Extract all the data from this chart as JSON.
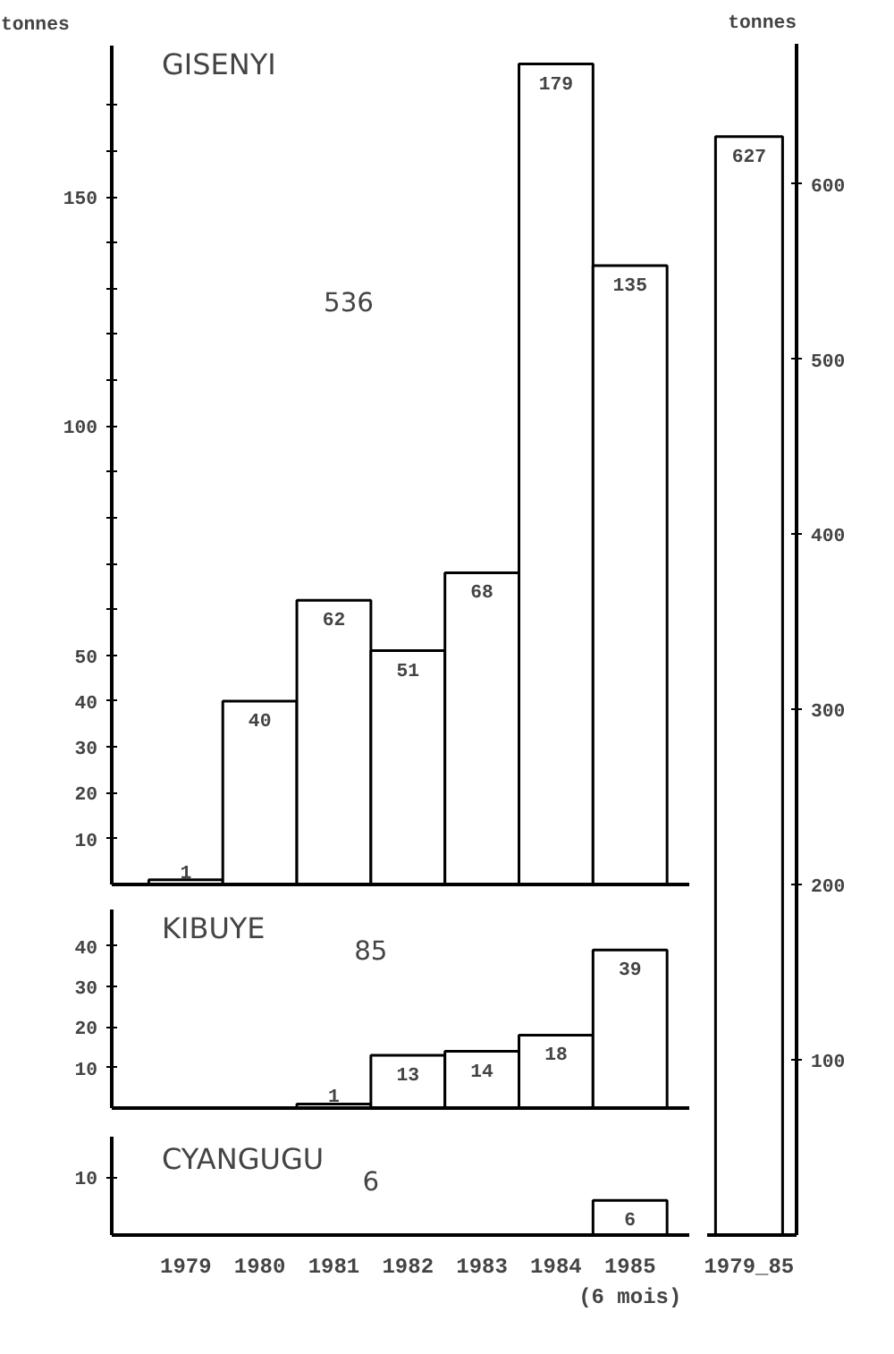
{
  "chart_data": [
    {
      "type": "bar",
      "title": "GISENYI",
      "ylabel": "tonnes",
      "values": [
        1,
        40,
        62,
        51,
        68,
        179,
        135
      ],
      "color": "#ffffff",
      "data_labels": true,
      "annotations": [
        "536"
      ],
      "ylim": [
        0,
        183
      ],
      "yticks": [
        10,
        20,
        30,
        40,
        50,
        {
          "value": 60,
          "label": null
        },
        {
          "value": 70,
          "label": null
        },
        {
          "value": 80,
          "label": null
        },
        {
          "value": 90,
          "label": null
        },
        100,
        {
          "value": 110,
          "label": null
        },
        {
          "value": 120,
          "label": null
        },
        {
          "value": 130,
          "label": null
        },
        {
          "value": 140,
          "label": null
        },
        150,
        {
          "value": 160,
          "label": null
        },
        {
          "value": 170,
          "label": null
        }
      ],
      "grid": false
    },
    {
      "type": "bar",
      "title": "KIBUYE",
      "values": [
        null,
        null,
        1,
        13,
        14,
        18,
        39
      ],
      "color": "#ffffff",
      "data_labels": true,
      "annotations": [
        "85"
      ],
      "ylim": [
        0,
        49
      ],
      "yticks": [
        10,
        20,
        30,
        40
      ],
      "grid": false
    },
    {
      "type": "bar",
      "title": "CYANGUGU",
      "categories": [
        "1979",
        "1980",
        "1981",
        "1982",
        "1983",
        "1984",
        "1985\n(6 mois)"
      ],
      "values": [
        null,
        null,
        null,
        null,
        null,
        null,
        6
      ],
      "color": "#ffffff",
      "data_labels": true,
      "annotations": [
        "6"
      ],
      "ylim": [
        0,
        17
      ],
      "yticks": [
        10
      ],
      "grid": false
    },
    {
      "type": "bar",
      "ylabel": "tonnes",
      "categories": [
        "1979_85"
      ],
      "values": [
        627
      ],
      "color": "#ffffff",
      "data_labels": true,
      "ylim": [
        0,
        680
      ],
      "yticks": [
        100,
        200,
        300,
        400,
        500,
        600
      ],
      "grid": false
    }
  ]
}
